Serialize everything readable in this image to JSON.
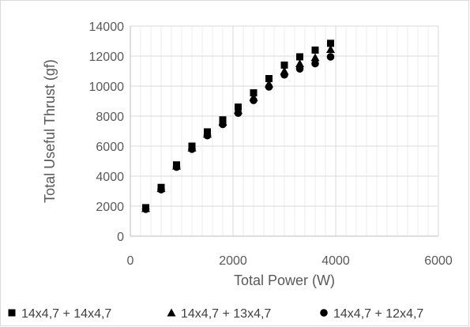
{
  "chart_data": {
    "type": "scatter",
    "title": "",
    "xlabel": "Total Power (W)",
    "ylabel": "Total Useful Thrust (gf)",
    "xlim": [
      0,
      6000
    ],
    "ylim": [
      0,
      14000
    ],
    "x_ticks": [
      "0",
      "2000",
      "4000",
      "6000"
    ],
    "y_ticks": [
      "0",
      "2000",
      "4000",
      "6000",
      "8000",
      "10000",
      "12000",
      "14000"
    ],
    "grid": true,
    "legend_position": "bottom",
    "series": [
      {
        "name": "14x4,7 + 14x4,7",
        "marker": "square",
        "color": "#000000",
        "x": [
          300,
          600,
          900,
          1200,
          1500,
          1800,
          2100,
          2400,
          2700,
          3000,
          3300,
          3600,
          3900
        ],
        "y": [
          1900,
          3250,
          4750,
          6000,
          6950,
          7750,
          8600,
          9550,
          10500,
          11400,
          11950,
          12400,
          12850
        ]
      },
      {
        "name": "14x4,7 + 13x4,7",
        "marker": "triangle",
        "color": "#000000",
        "x": [
          300,
          600,
          900,
          1200,
          1500,
          1800,
          2100,
          2400,
          2700,
          3000,
          3300,
          3600,
          3900
        ],
        "y": [
          1850,
          3180,
          4680,
          5880,
          6800,
          7600,
          8380,
          9250,
          10150,
          11000,
          11500,
          11900,
          12450
        ]
      },
      {
        "name": "14x4,7 + 12x4,7",
        "marker": "circle",
        "color": "#000000",
        "x": [
          300,
          600,
          900,
          1200,
          1500,
          1800,
          2100,
          2400,
          2700,
          3000,
          3300,
          3600,
          3900
        ],
        "y": [
          1800,
          3100,
          4600,
          5800,
          6700,
          7450,
          8200,
          9050,
          9950,
          10750,
          11150,
          11500,
          11950
        ]
      }
    ]
  }
}
